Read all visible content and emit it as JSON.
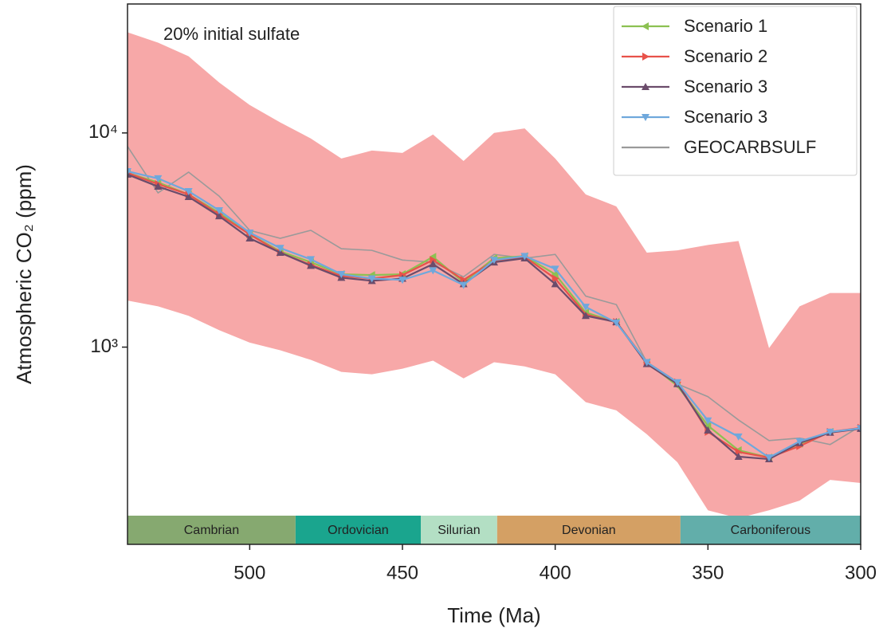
{
  "chart_data": {
    "type": "line",
    "annotation": "20% initial sulfate",
    "xlabel": "Time (Ma)",
    "ylabel": "Atmospheric CO₂ (ppm)",
    "xlim": [
      540,
      300
    ],
    "xticks": [
      500,
      450,
      400,
      350,
      300
    ],
    "ylim": [
      120,
      40000
    ],
    "ylog": true,
    "yticks": [
      {
        "value": 1000,
        "label": "10³"
      },
      {
        "value": 10000,
        "label": "10⁴"
      }
    ],
    "legend": "upper right",
    "x": [
      540,
      530,
      520,
      510,
      500,
      490,
      480,
      470,
      460,
      450,
      440,
      430,
      420,
      410,
      400,
      390,
      380,
      370,
      360,
      350,
      340,
      330,
      320,
      310,
      300
    ],
    "band": {
      "color": "#f7a8a8",
      "upper": [
        29500,
        26400,
        22800,
        17200,
        13500,
        11200,
        9420,
        7600,
        8280,
        8070,
        9830,
        7400,
        10000,
        10500,
        7600,
        5160,
        4540,
        2760,
        2830,
        3000,
        3130,
        990,
        1550,
        1790,
        1790
      ],
      "lower": [
        1650,
        1550,
        1400,
        1200,
        1050,
        967,
        872,
        766,
        747,
        793,
        865,
        715,
        850,
        813,
        747,
        553,
        507,
        392,
        290,
        173,
        159,
        173,
        192,
        240,
        232
      ]
    },
    "series": [
      {
        "name": "Scenario 1",
        "color": "#8cc152",
        "marker": "left",
        "values": [
          6500,
          5870,
          5160,
          4240,
          3360,
          2800,
          2490,
          2190,
          2170,
          2190,
          2640,
          2010,
          2600,
          2660,
          2190,
          1450,
          1310,
          850,
          660,
          430,
          330,
          305,
          354,
          402,
          416
        ]
      },
      {
        "name": "Scenario 2",
        "color": "#e8524a",
        "marker": "right",
        "values": [
          6500,
          5770,
          5160,
          4160,
          3360,
          2760,
          2420,
          2150,
          2090,
          2170,
          2550,
          2060,
          2530,
          2640,
          2090,
          1420,
          1310,
          850,
          685,
          402,
          324,
          305,
          345,
          402,
          420
        ]
      },
      {
        "name": "Scenario 3",
        "color": "#6b4c6b",
        "marker": "up",
        "values": [
          6400,
          5620,
          5030,
          4090,
          3220,
          2760,
          2400,
          2110,
          2040,
          2090,
          2440,
          1970,
          2490,
          2600,
          1970,
          1400,
          1310,
          835,
          673,
          409,
          308,
          300,
          357,
          399,
          416
        ]
      },
      {
        "name": "Scenario 3",
        "color": "#6fa8dc",
        "marker": "down",
        "values": [
          6620,
          6130,
          5340,
          4350,
          3420,
          2900,
          2570,
          2190,
          2090,
          2060,
          2280,
          1950,
          2550,
          2660,
          2320,
          1540,
          1300,
          850,
          685,
          454,
          382,
          305,
          363,
          402,
          418
        ]
      },
      {
        "name": "GEOCARBSULF",
        "color": "#9a9a9a",
        "marker": "none",
        "values": [
          8650,
          5250,
          6560,
          5070,
          3510,
          3220,
          3510,
          2880,
          2830,
          2550,
          2490,
          2130,
          2710,
          2600,
          2710,
          1730,
          1580,
          850,
          673,
          587,
          457,
          366,
          376,
          351,
          428
        ]
      }
    ],
    "periods": [
      {
        "name": "Cambrian",
        "start": 540,
        "end": 485,
        "color": "#86a970"
      },
      {
        "name": "Ordovician",
        "start": 485,
        "end": 444,
        "color": "#1aa58e"
      },
      {
        "name": "Silurian",
        "start": 444,
        "end": 419,
        "color": "#b3dfc4"
      },
      {
        "name": "Devonian",
        "start": 419,
        "end": 359,
        "color": "#d4a064"
      },
      {
        "name": "Carboniferous",
        "start": 359,
        "end": 300,
        "color": "#62aeaa"
      }
    ]
  }
}
